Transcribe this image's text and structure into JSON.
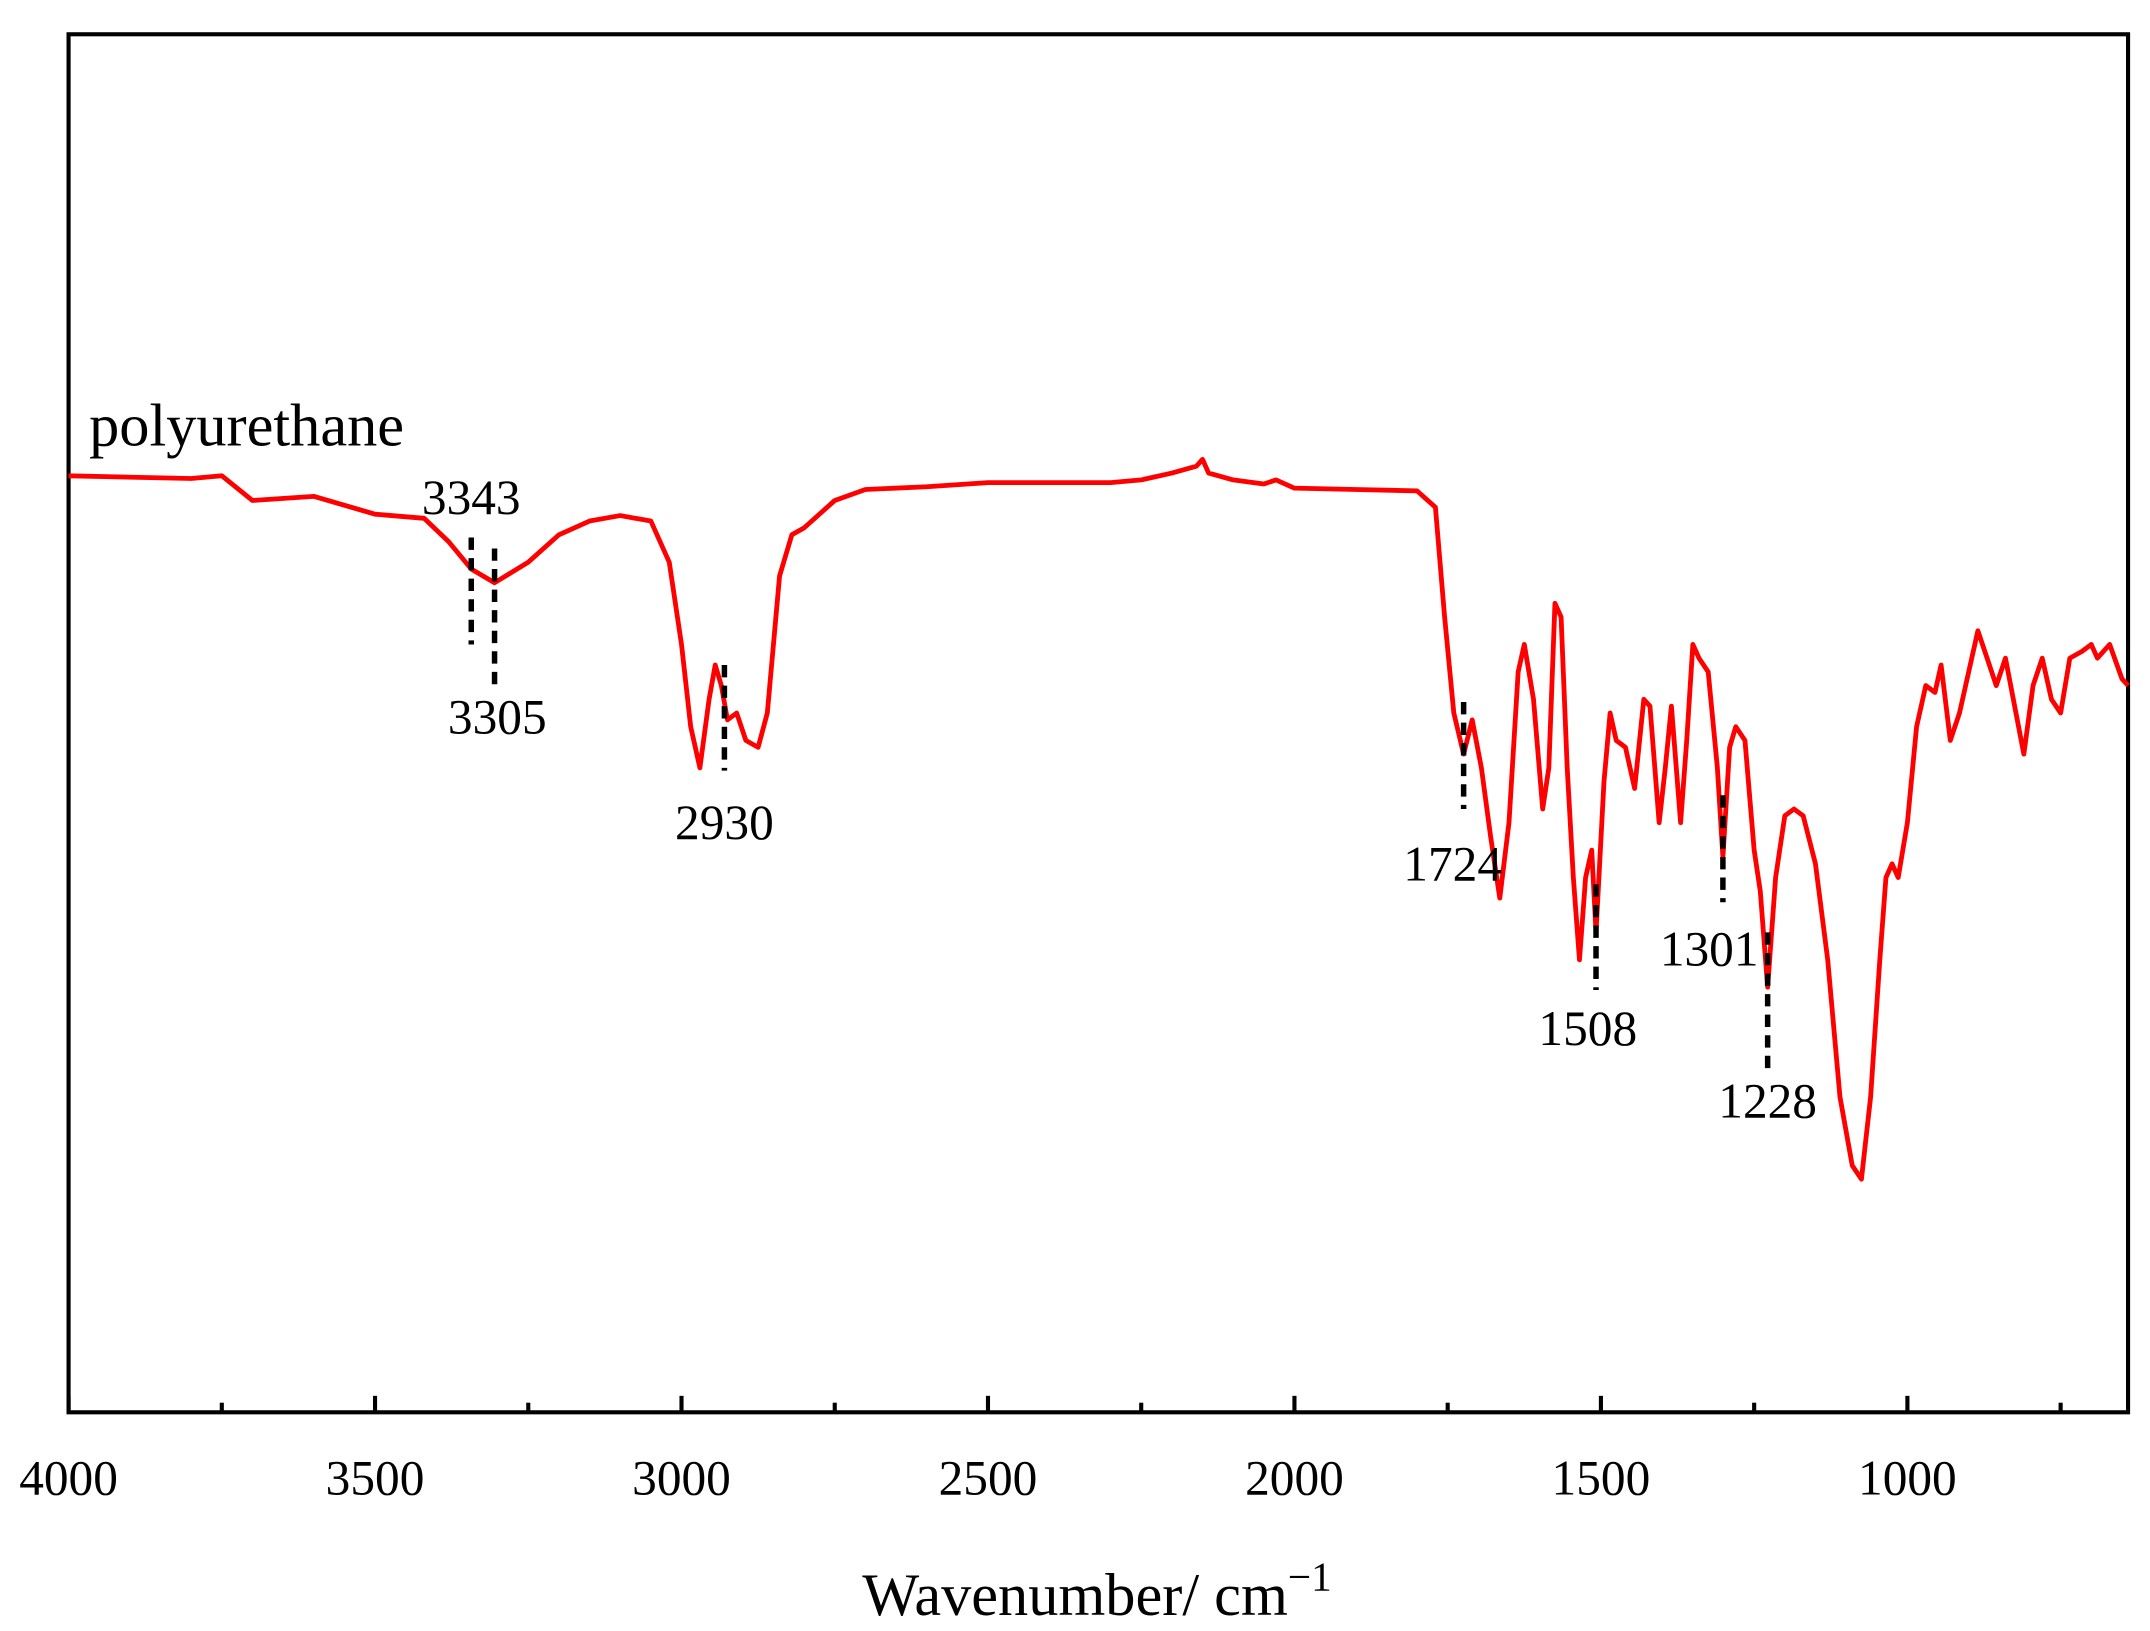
{
  "chart_data": {
    "type": "line",
    "title": "polyurethane",
    "x_label": "Wavenumber/ cm",
    "x_label_sup": "−1",
    "xlim": [
      4000,
      640
    ],
    "ylim": [
      0,
      1005
    ],
    "xticks": [
      4000,
      3500,
      3000,
      2500,
      2000,
      1500,
      1000
    ],
    "xminor": [
      3750,
      3250,
      2750,
      2250,
      1750,
      1250,
      750
    ],
    "peaks": [
      3343,
      3305,
      2930,
      1724,
      1508,
      1301,
      1228
    ],
    "series": [
      {
        "name": "polyurethane",
        "color": "#ff0000",
        "x": [
          4000,
          3800,
          3750,
          3700,
          3600,
          3500,
          3420,
          3380,
          3343,
          3305,
          3250,
          3200,
          3150,
          3100,
          3050,
          3020,
          3000,
          2985,
          2970,
          2955,
          2945,
          2935,
          2925,
          2910,
          2895,
          2875,
          2860,
          2840,
          2820,
          2800,
          2750,
          2700,
          2600,
          2500,
          2400,
          2300,
          2250,
          2200,
          2160,
          2150,
          2140,
          2100,
          2050,
          2030,
          2000,
          1900,
          1800,
          1770,
          1755,
          1740,
          1724,
          1710,
          1695,
          1680,
          1665,
          1650,
          1635,
          1625,
          1610,
          1595,
          1585,
          1575,
          1565,
          1555,
          1545,
          1535,
          1525,
          1515,
          1508,
          1495,
          1485,
          1475,
          1460,
          1445,
          1430,
          1420,
          1405,
          1395,
          1385,
          1370,
          1360,
          1350,
          1340,
          1325,
          1310,
          1301,
          1290,
          1280,
          1265,
          1250,
          1240,
          1228,
          1215,
          1200,
          1185,
          1170,
          1150,
          1130,
          1110,
          1090,
          1075,
          1060,
          1045,
          1035,
          1025,
          1015,
          1000,
          985,
          970,
          955,
          945,
          930,
          915,
          900,
          885,
          870,
          855,
          840,
          825,
          810,
          795,
          780,
          765,
          750,
          735,
          715,
          700,
          690,
          670,
          650,
          640
        ],
        "values": [
          683,
          681,
          683,
          665,
          668,
          655,
          652,
          635,
          615,
          605,
          620,
          640,
          650,
          654,
          650,
          620,
          560,
          500,
          470,
          520,
          545,
          530,
          505,
          510,
          490,
          485,
          510,
          610,
          640,
          645,
          665,
          673,
          675,
          678,
          678,
          678,
          680,
          685,
          690,
          695,
          685,
          680,
          677,
          680,
          674,
          673,
          672,
          660,
          580,
          510,
          480,
          505,
          470,
          420,
          375,
          430,
          540,
          560,
          520,
          440,
          470,
          590,
          580,
          470,
          390,
          330,
          390,
          410,
          350,
          460,
          510,
          490,
          485,
          455,
          520,
          515,
          430,
          470,
          515,
          430,
          490,
          560,
          550,
          540,
          470,
          405,
          485,
          500,
          490,
          410,
          380,
          310,
          390,
          435,
          440,
          435,
          400,
          330,
          230,
          180,
          170,
          230,
          330,
          390,
          400,
          390,
          430,
          500,
          530,
          525,
          545,
          490,
          510,
          540,
          570,
          550,
          530,
          550,
          515,
          480,
          530,
          550,
          520,
          510,
          550,
          555,
          560,
          550,
          560,
          535,
          530
        ]
      }
    ]
  }
}
